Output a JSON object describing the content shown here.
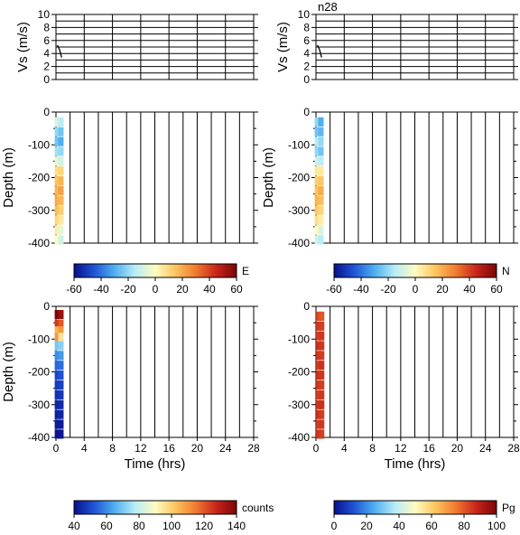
{
  "station_label": "n28",
  "chart_data": [
    {
      "id": "vs-left",
      "type": "line",
      "xlabel": "",
      "ylabel": "Vs (m/s)",
      "xlim": [
        0,
        28
      ],
      "ylim": [
        0,
        10
      ],
      "x_ticks": [
        0,
        4,
        8,
        12,
        16,
        20,
        24,
        28
      ],
      "y_ticks": [
        0,
        2,
        4,
        6,
        8,
        10
      ],
      "series": [
        {
          "values": [
            [
              0.2,
              5.3
            ],
            [
              0.5,
              4.6
            ],
            [
              0.7,
              3.8
            ],
            [
              0.8,
              3.4
            ]
          ]
        }
      ]
    },
    {
      "id": "vs-right",
      "type": "line",
      "xlabel": "",
      "ylabel": "Vs (m/s)",
      "xlim": [
        0,
        28
      ],
      "ylim": [
        0,
        10
      ],
      "x_ticks": [
        0,
        4,
        8,
        12,
        16,
        20,
        24,
        28
      ],
      "y_ticks": [
        0,
        2,
        4,
        6,
        8,
        10
      ],
      "series": [
        {
          "values": [
            [
              0.2,
              5.3
            ],
            [
              0.5,
              4.6
            ],
            [
              0.7,
              3.8
            ],
            [
              0.8,
              3.4
            ]
          ]
        }
      ]
    },
    {
      "id": "depth-E",
      "type": "heatmap",
      "ylabel": "Depth (m)",
      "xlabel": "",
      "xlim": [
        0,
        28
      ],
      "ylim": [
        -400,
        0
      ],
      "x_ticks": [
        0,
        4,
        8,
        12,
        16,
        20,
        24,
        28
      ],
      "y_ticks": [
        0,
        -100,
        -200,
        -300,
        -400
      ],
      "columns": [
        {
          "t": 0.2,
          "depth": [
            -30,
            -60,
            -90,
            -120,
            -150,
            -180,
            -210,
            -240,
            -270,
            -300,
            -330,
            -360,
            -390
          ],
          "values": [
            -8,
            -20,
            -25,
            -18,
            -5,
            8,
            15,
            18,
            20,
            16,
            10,
            4,
            0
          ]
        },
        {
          "t": 0.7,
          "depth": [
            -30,
            -60,
            -90,
            -120,
            -150,
            -180,
            -210,
            -240,
            -270,
            -300,
            -330,
            -360,
            -390
          ],
          "values": [
            -15,
            -25,
            -30,
            -20,
            -10,
            10,
            18,
            22,
            18,
            12,
            5,
            -5,
            -10
          ]
        }
      ],
      "colorbar": {
        "label": "E",
        "ticks": [
          -60,
          -40,
          -20,
          0,
          20,
          40,
          60
        ],
        "range": [
          -60,
          60
        ]
      }
    },
    {
      "id": "depth-N",
      "type": "heatmap",
      "ylabel": "Depth (m)",
      "xlabel": "",
      "xlim": [
        0,
        28
      ],
      "ylim": [
        -400,
        0
      ],
      "x_ticks": [
        0,
        4,
        8,
        12,
        16,
        20,
        24,
        28
      ],
      "y_ticks": [
        0,
        -100,
        -200,
        -300,
        -400
      ],
      "columns": [
        {
          "t": 0.2,
          "depth": [
            -30,
            -60,
            -90,
            -120,
            -150,
            -180,
            -210,
            -240,
            -270,
            -300,
            -330,
            -360,
            -390
          ],
          "values": [
            -20,
            -25,
            -15,
            -20,
            -10,
            5,
            12,
            15,
            18,
            14,
            8,
            0,
            -10
          ]
        },
        {
          "t": 0.7,
          "depth": [
            -30,
            -60,
            -90,
            -120,
            -150,
            -180,
            -210,
            -240,
            -270,
            -300,
            -330,
            -360,
            -390
          ],
          "values": [
            -30,
            -28,
            -20,
            -25,
            -15,
            5,
            14,
            20,
            16,
            10,
            4,
            -8,
            -15
          ]
        }
      ],
      "colorbar": {
        "label": "N",
        "ticks": [
          -60,
          -40,
          -20,
          0,
          20,
          40,
          60
        ],
        "range": [
          -60,
          60
        ]
      }
    },
    {
      "id": "depth-counts",
      "type": "heatmap",
      "ylabel": "Depth (m)",
      "xlabel": "Time (hrs)",
      "xlim": [
        0,
        28
      ],
      "ylim": [
        -400,
        0
      ],
      "x_ticks": [
        0,
        4,
        8,
        12,
        16,
        20,
        24,
        28
      ],
      "y_ticks": [
        0,
        -100,
        -200,
        -300,
        -400
      ],
      "columns": [
        {
          "t": 0.2,
          "depth": [
            -25,
            -55,
            -75,
            -95,
            -120,
            -150,
            -180,
            -210,
            -240,
            -270,
            -300,
            -330,
            -360,
            -390
          ],
          "values": [
            140,
            125,
            105,
            110,
            70,
            60,
            55,
            50,
            48,
            46,
            44,
            43,
            42,
            41
          ]
        },
        {
          "t": 0.7,
          "depth": [
            -25,
            -55,
            -75,
            -95,
            -120,
            -150,
            -180,
            -210,
            -240,
            -270,
            -300,
            -330,
            -360,
            -390
          ],
          "values": [
            135,
            120,
            110,
            95,
            72,
            62,
            56,
            52,
            49,
            47,
            45,
            44,
            42,
            41
          ]
        }
      ],
      "colorbar": {
        "label": "counts",
        "ticks": [
          40,
          60,
          80,
          100,
          120,
          140
        ],
        "range": [
          40,
          140
        ]
      }
    },
    {
      "id": "depth-Pg",
      "type": "heatmap",
      "ylabel": "",
      "xlabel": "Time (hrs)",
      "xlim": [
        0,
        28
      ],
      "ylim": [
        -400,
        0
      ],
      "x_ticks": [
        0,
        4,
        8,
        12,
        16,
        20,
        24,
        28
      ],
      "y_ticks": [
        0,
        -100,
        -200,
        -300,
        -400
      ],
      "columns": [
        {
          "t": 0.4,
          "depth": [
            -30,
            -60,
            -90,
            -120,
            -150,
            -180,
            -210,
            -240,
            -270,
            -300,
            -330,
            -360,
            -390
          ],
          "values": [
            82,
            85,
            84,
            86,
            85,
            84,
            86,
            85,
            84,
            85,
            86,
            84,
            85
          ]
        },
        {
          "t": 0.8,
          "depth": [
            -30,
            -60,
            -90,
            -120,
            -150,
            -180,
            -210,
            -240,
            -270,
            -300,
            -330,
            -360,
            -390
          ],
          "values": [
            80,
            84,
            85,
            85,
            84,
            86,
            85,
            84,
            85,
            86,
            84,
            85,
            84
          ]
        }
      ],
      "colorbar": {
        "label": "Pg",
        "ticks": [
          0,
          20,
          40,
          60,
          80,
          100
        ],
        "range": [
          0,
          100
        ]
      }
    }
  ],
  "colors": {
    "colormap": [
      "#08108c",
      "#1f55d6",
      "#4fb0f0",
      "#b8ecf7",
      "#fffbc0",
      "#fcc45e",
      "#f07a2e",
      "#c8251a",
      "#7a0606"
    ]
  }
}
